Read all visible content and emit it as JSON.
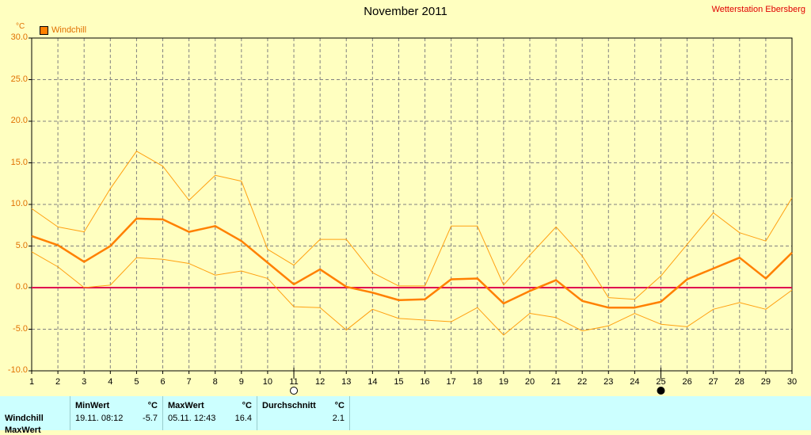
{
  "title": "November 2011",
  "station": "Wetterstation Ebersberg",
  "unit": "°C",
  "legend": "Windchill",
  "colors": {
    "background": "#ffffc0",
    "main_line": "#ff8000",
    "band_line": "#ffa010",
    "zero_line": "#e00050",
    "grid": "#808080",
    "panel": "#ccffff"
  },
  "chart_data": {
    "type": "line",
    "title": "November 2011",
    "ylabel": "°C",
    "xlabel": "",
    "ylim": [
      -10,
      30
    ],
    "xlim": [
      1,
      30
    ],
    "yticks": [
      "30.0",
      "25.0",
      "20.0",
      "15.0",
      "10.0",
      "5.0",
      "0.0",
      "-5.0",
      "-10.0"
    ],
    "xticks": [
      "1",
      "2",
      "3",
      "4",
      "5",
      "6",
      "7",
      "8",
      "9",
      "10",
      "11",
      "12",
      "13",
      "14",
      "15",
      "16",
      "17",
      "18",
      "19",
      "20",
      "21",
      "22",
      "23",
      "24",
      "25",
      "26",
      "27",
      "28",
      "29",
      "30"
    ],
    "grid": true,
    "legend_position": "top-left",
    "x": [
      1,
      2,
      3,
      4,
      5,
      6,
      7,
      8,
      9,
      10,
      11,
      12,
      13,
      14,
      15,
      16,
      17,
      18,
      19,
      20,
      21,
      22,
      23,
      24,
      25,
      26,
      27,
      28,
      29,
      30
    ],
    "series": [
      {
        "name": "Windchill",
        "values": [
          6.2,
          5.1,
          3.1,
          5.0,
          8.3,
          8.2,
          6.7,
          7.4,
          5.6,
          3.0,
          0.4,
          2.2,
          0.1,
          -0.6,
          -1.5,
          -1.4,
          1.0,
          1.1,
          -1.9,
          -0.4,
          0.9,
          -1.6,
          -2.4,
          -2.4,
          -1.7,
          1.0,
          2.3,
          3.6,
          1.1,
          4.2
        ]
      },
      {
        "values": [
          9.5,
          7.3,
          6.7,
          11.9,
          16.4,
          14.6,
          10.5,
          13.5,
          12.8,
          4.6,
          2.7,
          5.8,
          5.8,
          1.8,
          0.2,
          0.2,
          7.4,
          7.4,
          0.3,
          3.9,
          7.3,
          3.8,
          -1.2,
          -1.4,
          1.4,
          5.2,
          9.0,
          6.6,
          5.6,
          10.8
        ]
      },
      {
        "values": [
          4.3,
          2.5,
          0.0,
          0.3,
          3.6,
          3.4,
          2.9,
          1.5,
          2.0,
          1.1,
          -2.3,
          -2.4,
          -5.1,
          -2.6,
          -3.7,
          -3.9,
          -4.1,
          -2.4,
          -5.7,
          -3.1,
          -3.6,
          -5.2,
          -4.6,
          -3.1,
          -4.4,
          -4.7,
          -2.6,
          -1.8,
          -2.6,
          -0.3
        ]
      }
    ],
    "reference_line": 0.0
  },
  "moon_markers": [
    {
      "day": 11,
      "phase": "full-moon-icon"
    },
    {
      "day": 25,
      "phase": "new-moon-icon"
    }
  ],
  "stats": {
    "row_label": "Windchill",
    "row_label_2": "MaxWert",
    "min_header": "MinWert",
    "min_unit": "°C",
    "min_date": "19.11.  08:12",
    "min_value": "-5.7",
    "max_header": "MaxWert",
    "max_unit": "°C",
    "max_date": "05.11.  12:43",
    "max_value": "16.4",
    "avg_header": "Durchschnitt",
    "avg_unit": "°C",
    "avg_value": "2.1"
  }
}
